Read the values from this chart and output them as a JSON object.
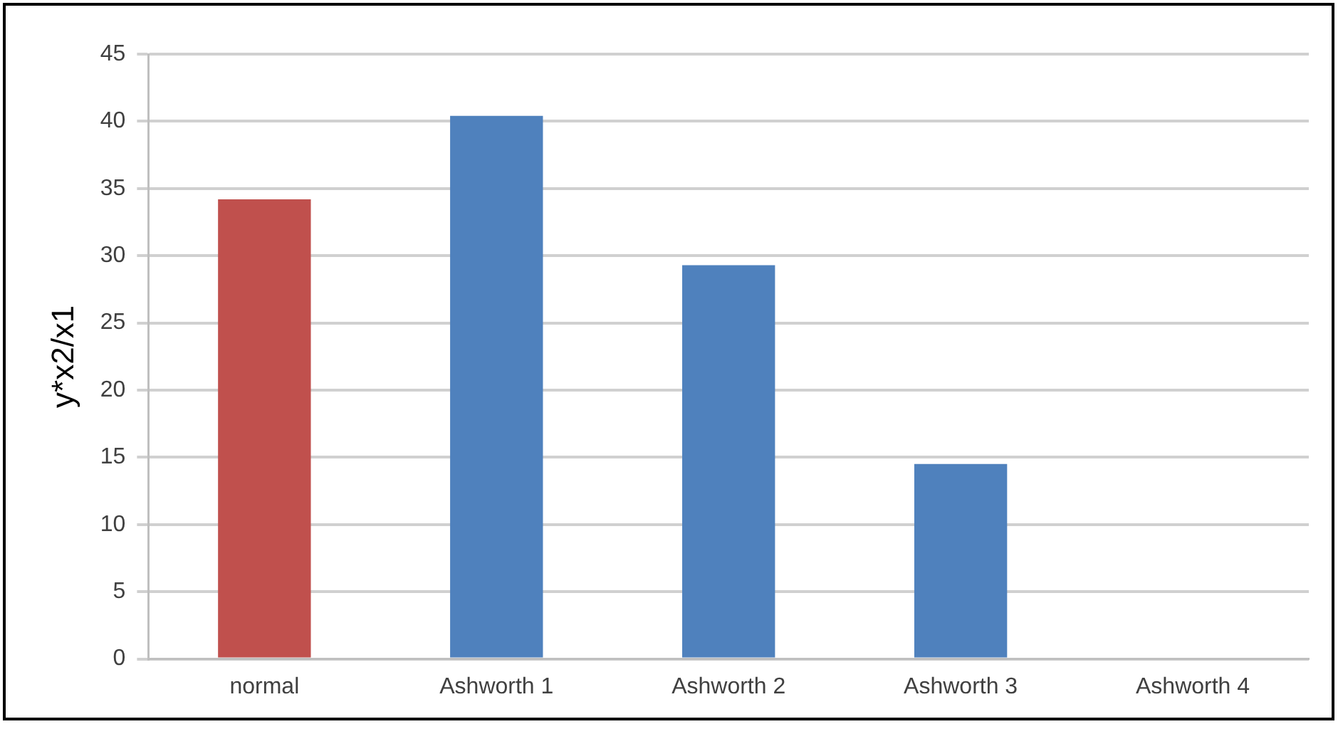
{
  "chart_data": {
    "type": "bar",
    "ylabel": "y*x2/x1",
    "categories": [
      "normal",
      "Ashworth 1",
      "Ashworth 2",
      "Ashworth 3",
      "Ashworth 4"
    ],
    "values": [
      34.2,
      40.4,
      29.3,
      14.5,
      0
    ],
    "colors": [
      "#c0504d",
      "#4f81bd",
      "#4f81bd",
      "#4f81bd",
      "#4f81bd"
    ],
    "ylim": [
      0,
      45
    ],
    "yticks": [
      0,
      5,
      10,
      15,
      20,
      25,
      30,
      35,
      40,
      45
    ],
    "grid": "y",
    "legend": false
  }
}
